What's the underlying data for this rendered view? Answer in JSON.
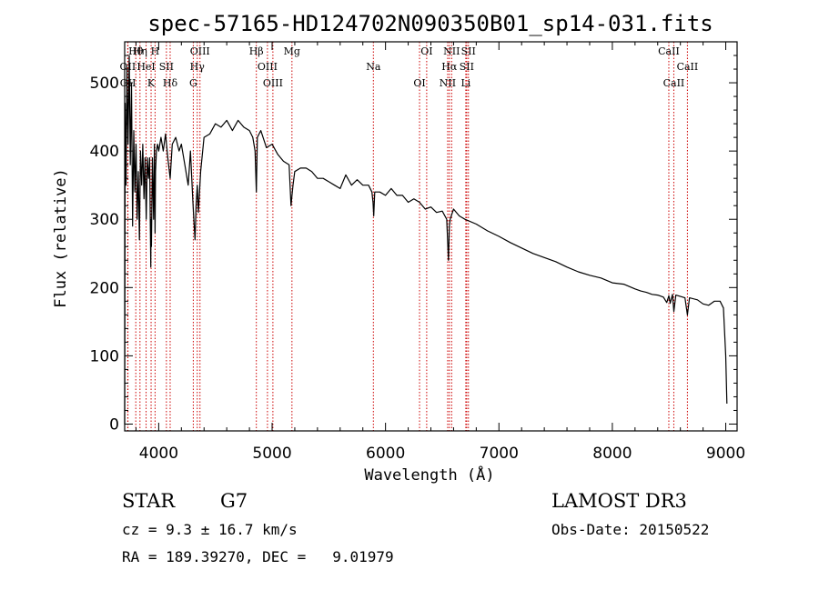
{
  "chart_data": {
    "type": "line",
    "title": "spec-57165-HD124702N090350B01_sp14-031.fits",
    "xlabel": "Wavelength (Å)",
    "ylabel": "Flux (relative)",
    "xlim": [
      3700,
      9100
    ],
    "ylim": [
      -10,
      560
    ],
    "xticks": [
      4000,
      5000,
      6000,
      7000,
      8000,
      9000
    ],
    "yticks": [
      0,
      100,
      200,
      300,
      400,
      500
    ],
    "series": [
      {
        "name": "spectrum",
        "x": [
          3700,
          3705,
          3712,
          3720,
          3730,
          3740,
          3750,
          3760,
          3770,
          3780,
          3790,
          3800,
          3810,
          3820,
          3830,
          3840,
          3850,
          3860,
          3870,
          3880,
          3890,
          3900,
          3910,
          3920,
          3930,
          3933,
          3936,
          3945,
          3955,
          3962,
          3968,
          3972,
          3980,
          3990,
          4000,
          4020,
          4040,
          4060,
          4080,
          4101,
          4120,
          4150,
          4180,
          4200,
          4230,
          4260,
          4280,
          4300,
          4310,
          4320,
          4330,
          4340,
          4350,
          4370,
          4400,
          4450,
          4500,
          4550,
          4600,
          4650,
          4700,
          4750,
          4800,
          4830,
          4850,
          4861,
          4870,
          4900,
          4950,
          5000,
          5050,
          5100,
          5150,
          5167,
          5172,
          5184,
          5200,
          5250,
          5300,
          5350,
          5400,
          5450,
          5500,
          5550,
          5600,
          5650,
          5700,
          5750,
          5800,
          5850,
          5880,
          5890,
          5896,
          5905,
          5950,
          6000,
          6050,
          6100,
          6150,
          6200,
          6250,
          6300,
          6350,
          6400,
          6450,
          6500,
          6540,
          6555,
          6563,
          6570,
          6600,
          6650,
          6700,
          6800,
          6900,
          7000,
          7100,
          7200,
          7300,
          7400,
          7500,
          7600,
          7700,
          7800,
          7900,
          8000,
          8100,
          8200,
          8250,
          8300,
          8350,
          8400,
          8450,
          8480,
          8498,
          8510,
          8530,
          8542,
          8560,
          8600,
          8640,
          8662,
          8680,
          8750,
          8800,
          8850,
          8900,
          8950,
          8980,
          9000,
          9010
        ],
        "values": [
          0,
          470,
          350,
          520,
          410,
          540,
          380,
          500,
          290,
          430,
          340,
          410,
          300,
          370,
          270,
          400,
          350,
          410,
          330,
          390,
          300,
          390,
          360,
          390,
          230,
          300,
          260,
          390,
          300,
          410,
          280,
          370,
          400,
          410,
          400,
          420,
          400,
          425,
          390,
          360,
          410,
          420,
          400,
          410,
          380,
          350,
          400,
          330,
          300,
          270,
          320,
          350,
          310,
          370,
          420,
          425,
          440,
          435,
          445,
          430,
          445,
          435,
          430,
          420,
          400,
          340,
          420,
          430,
          405,
          410,
          395,
          385,
          380,
          320,
          330,
          350,
          370,
          375,
          375,
          370,
          360,
          360,
          355,
          350,
          345,
          365,
          350,
          358,
          350,
          350,
          340,
          325,
          305,
          340,
          340,
          335,
          345,
          335,
          335,
          325,
          330,
          325,
          315,
          318,
          310,
          312,
          300,
          240,
          290,
          300,
          315,
          305,
          300,
          293,
          283,
          275,
          266,
          258,
          250,
          244,
          238,
          230,
          223,
          218,
          214,
          207,
          205,
          198,
          195,
          193,
          190,
          189,
          186,
          178,
          188,
          177,
          190,
          165,
          189,
          187,
          185,
          160,
          185,
          182,
          176,
          174,
          180,
          180,
          170,
          100,
          30
        ]
      }
    ],
    "lines": [
      {
        "label": "Hθ",
        "wave": 3798
      },
      {
        "label": "OII",
        "wave": 3727
      },
      {
        "label": "OII",
        "wave": 3729
      },
      {
        "label": "Hη",
        "wave": 3835
      },
      {
        "label": "HeI",
        "wave": 3889
      },
      {
        "label": "K",
        "wave": 3933
      },
      {
        "label": "H",
        "wave": 3968
      },
      {
        "label": "SII",
        "wave": 4068
      },
      {
        "label": "Hδ",
        "wave": 4101
      },
      {
        "label": "OIII",
        "wave": 4364
      },
      {
        "label": "Hγ",
        "wave": 4340
      },
      {
        "label": "G",
        "wave": 4305
      },
      {
        "label": "Hβ",
        "wave": 4861
      },
      {
        "label": "OIII",
        "wave": 4959
      },
      {
        "label": "OIII",
        "wave": 5007
      },
      {
        "label": "Mg",
        "wave": 5175
      },
      {
        "label": "Na",
        "wave": 5893
      },
      {
        "label": "OI",
        "wave": 6300
      },
      {
        "label": "OI",
        "wave": 6363
      },
      {
        "label": "Hα",
        "wave": 6563
      },
      {
        "label": "NII",
        "wave": 6548
      },
      {
        "label": "NII",
        "wave": 6583
      },
      {
        "label": "SII",
        "wave": 6716
      },
      {
        "label": "Li",
        "wave": 6708
      },
      {
        "label": "SII",
        "wave": 6731
      },
      {
        "label": "CaII",
        "wave": 8662
      },
      {
        "label": "CaII",
        "wave": 8542
      },
      {
        "label": "CaII",
        "wave": 8498
      }
    ],
    "colors": {
      "spectrum": "#000000",
      "line_markers": "#cc0000"
    }
  },
  "info": {
    "class_label": "STAR",
    "subclass": "G7",
    "survey": "LAMOST DR3",
    "cz": "cz = 9.3 ± 16.7 km/s",
    "obs_date": "Obs-Date: 20150522",
    "coords": "RA = 189.39270, DEC =   9.01979"
  }
}
